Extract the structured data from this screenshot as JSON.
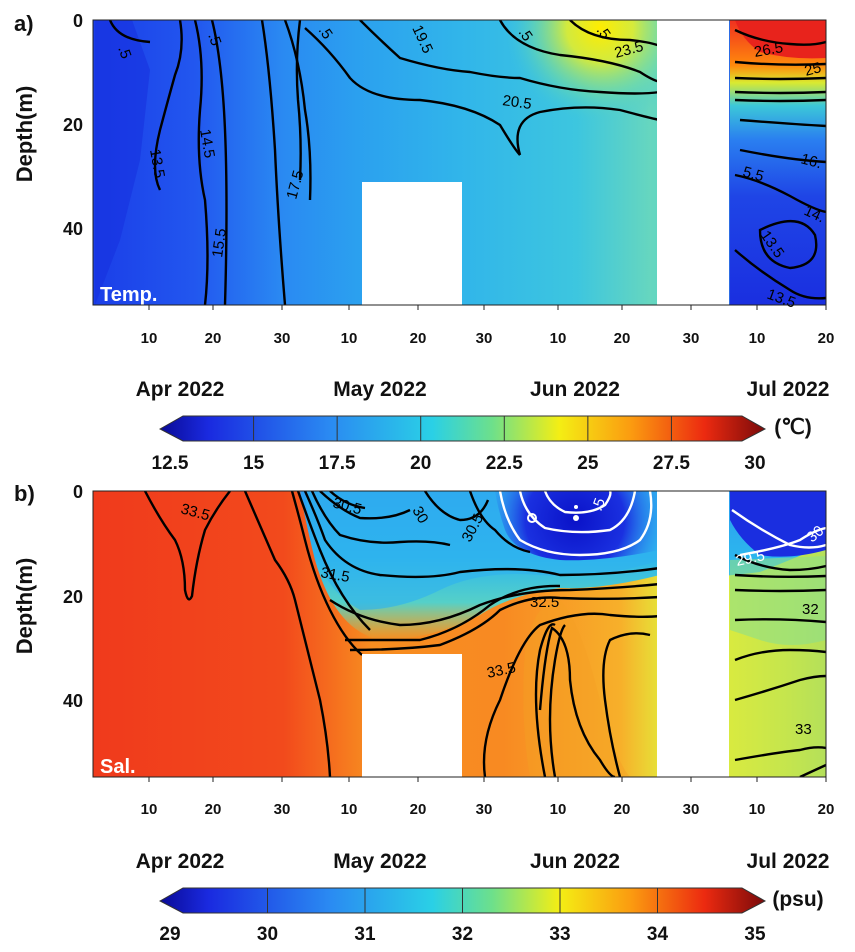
{
  "chart_data": [
    {
      "panel": "a)",
      "type": "heatmap",
      "variable_label": "Temp.",
      "ylabel": "Depth(m)",
      "ylim": [
        0,
        55
      ],
      "yticks": [
        0,
        20,
        40
      ],
      "xtick_labels": [
        "10",
        "20",
        "30",
        "10",
        "20",
        "30",
        "10",
        "20",
        "30",
        "10",
        "20"
      ],
      "month_labels": [
        "Apr 2022",
        "May 2022",
        "Jun 2022",
        "Jul 2022"
      ],
      "colorbar": {
        "min": 12.5,
        "max": 30,
        "ticks": [
          "12.5",
          "15",
          "17.5",
          "20",
          "22.5",
          "25",
          "27.5",
          "30"
        ],
        "unit": "(℃)"
      },
      "contour_labels": [
        "13.5",
        "14.5",
        "15.5",
        "17.5",
        "19.5",
        "20.5",
        "23.5",
        "26.5",
        "16.",
        "14.",
        "13.5",
        "13.5"
      ],
      "no_data_regions": [
        "May 12 – May 27, depth > 31 m",
        "Jun 25 – Jul 6, all depths"
      ]
    },
    {
      "panel": "b)",
      "type": "heatmap",
      "variable_label": "Sal.",
      "ylabel": "Depth(m)",
      "ylim": [
        0,
        55
      ],
      "yticks": [
        0,
        20,
        40
      ],
      "xtick_labels": [
        "10",
        "20",
        "30",
        "10",
        "20",
        "30",
        "10",
        "20",
        "30",
        "10",
        "20"
      ],
      "month_labels": [
        "Apr 2022",
        "May 2022",
        "Jun 2022",
        "Jul 2022"
      ],
      "colorbar": {
        "min": 29,
        "max": 35,
        "ticks": [
          "29",
          "30",
          "31",
          "32",
          "33",
          "34",
          "35"
        ],
        "unit": "(psu)"
      },
      "contour_labels": [
        "33.5",
        "30.5",
        "30",
        "30.5",
        "31.5",
        "32.5",
        "33.5",
        "29.5",
        "32",
        "33"
      ],
      "no_data_regions": [
        "May 12 – May 27, depth > 31 m",
        "Jun 25 – Jul 6, all depths"
      ]
    }
  ]
}
